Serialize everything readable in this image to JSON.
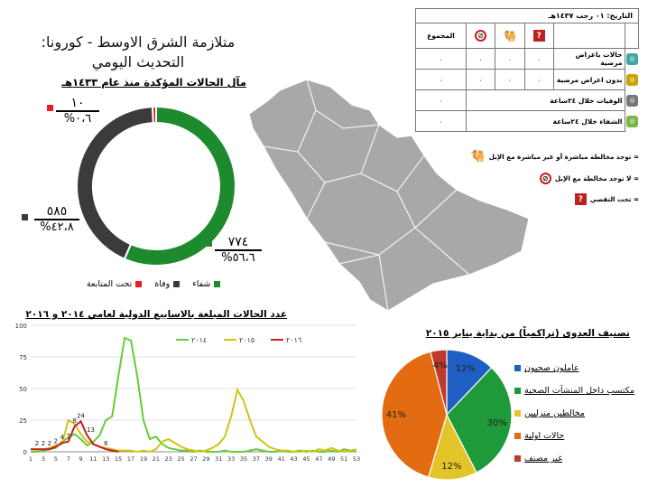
{
  "title": "متلازمة الشرق الاوسط - كورونا: التحديث اليومي",
  "confirmed": {
    "heading": "مآل الحالات المؤكدة منذ عام ١٤٣٣هـ",
    "labels": {
      "under_follow": {
        "value": "١٠",
        "pct": "٠،٦%"
      },
      "death": {
        "value": "٥٨٥",
        "pct": "٤٢،٨%"
      },
      "recovered": {
        "value": "٧٧٤",
        "pct": "٥٦،٦%"
      }
    },
    "legend": [
      "تحت المتابعة",
      "وفاة",
      "شفاء"
    ],
    "colors": {
      "under_follow": "#ed1c24",
      "death": "#3b3b3b",
      "recovered": "#1e8a2e"
    }
  },
  "table": {
    "date_label": "التاريخ:",
    "date_value": "٠١ رجب ١٤٣٧هـ",
    "total_label": "المجموع",
    "rows": [
      {
        "label": "حالات باعراض مرضية",
        "values": [
          "٠",
          "٠",
          "٠",
          "٠"
        ]
      },
      {
        "label": "بدون اعراض مرضية",
        "values": [
          "٠",
          "٠",
          "٠",
          "٠"
        ]
      },
      {
        "label": "الوفيات خلال ٢٤ساعة",
        "values": [
          "٠"
        ]
      },
      {
        "label": "الشفاء خلال ٢٤ساعة",
        "values": [
          "٠"
        ]
      }
    ]
  },
  "keys": [
    {
      "icon": "camel-icon",
      "text": "= توجد مخالطة مباشرة أو غير مباشرة مع الإبل"
    },
    {
      "icon": "no-camel-icon",
      "text": "= لا توجد مخالطة مع الإبل"
    },
    {
      "icon": "question-icon",
      "text": "= تحت التقصي"
    }
  ],
  "weekly": {
    "heading": "عدد الحالات المبلغة بالاسابيع الدولية لعامي ٢٠١٤ و ٢٠١٦",
    "series_names": [
      "٢٠١٤",
      "٢٠١٥",
      "٢٠١٦"
    ],
    "annotation_numbers": [
      "2",
      "2",
      "2",
      "2",
      "4",
      "7",
      "8",
      "24",
      "13",
      "6"
    ]
  },
  "classification": {
    "heading": "تصنيف العدوى (تراكمياً) من بداية يناير ٢٠١٥",
    "labels": [
      "عاملون صحيون",
      "مكتسب داخل المنشآت الصحية",
      "مخالطين منزليين",
      "حالات اولية",
      "غير مصنف"
    ],
    "pct_labels": [
      "12%",
      "30%",
      "12%",
      "41%",
      "4%"
    ]
  },
  "chart_data": [
    {
      "type": "pie",
      "title": "مآل الحالات المؤكدة منذ عام ١٤٣٣هـ",
      "categories": [
        "شفاء",
        "وفاة",
        "تحت المتابعة"
      ],
      "values": [
        774,
        585,
        10
      ],
      "colors": [
        "#1e8a2e",
        "#3b3b3b",
        "#ed1c24"
      ],
      "donut": true
    },
    {
      "type": "line",
      "title": "عدد الحالات المبلغة بالاسابيع الدولية لعامي ٢٠١٤ و ٢٠١٦",
      "x": [
        1,
        2,
        3,
        4,
        5,
        6,
        7,
        8,
        9,
        10,
        11,
        12,
        13,
        14,
        15,
        16,
        17,
        18,
        19,
        20,
        21,
        22,
        23,
        24,
        25,
        26,
        27,
        28,
        29,
        30,
        31,
        32,
        33,
        34,
        35,
        36,
        37,
        38,
        39,
        40,
        41,
        42,
        43,
        44,
        45,
        46,
        47,
        48,
        49,
        50,
        51,
        52,
        53
      ],
      "ylim": [
        0,
        100
      ],
      "yticks": [
        0,
        25,
        50,
        75,
        100
      ],
      "xticks": [
        1,
        3,
        5,
        7,
        9,
        11,
        13,
        15,
        17,
        19,
        21,
        23,
        25,
        27,
        29,
        31,
        33,
        35,
        37,
        39,
        41,
        43,
        45,
        47,
        49,
        51,
        53
      ],
      "series": [
        {
          "name": "٢٠١٤",
          "color": "#66cc33",
          "values": [
            0,
            0,
            1,
            2,
            3,
            8,
            11,
            14,
            10,
            5,
            8,
            13,
            25,
            28,
            60,
            90,
            88,
            60,
            25,
            10,
            12,
            6,
            3,
            2,
            1,
            1,
            0,
            1,
            0,
            0,
            0,
            1,
            0,
            0,
            0,
            1,
            2,
            1,
            0,
            0,
            1,
            0,
            0,
            1,
            0,
            1,
            0,
            0,
            1,
            0,
            2,
            1,
            0
          ]
        },
        {
          "name": "٢٠١٥",
          "color": "#d4c215",
          "values": [
            2,
            2,
            2,
            3,
            5,
            6,
            25,
            22,
            14,
            8,
            6,
            4,
            3,
            2,
            1,
            1,
            1,
            0,
            1,
            0,
            2,
            8,
            10,
            7,
            4,
            2,
            1,
            0,
            1,
            3,
            6,
            12,
            28,
            49,
            40,
            25,
            12,
            8,
            4,
            2,
            1,
            1,
            0,
            0,
            1,
            0,
            2,
            1,
            3,
            1,
            0,
            1,
            2
          ]
        },
        {
          "name": "٢٠١٦",
          "color": "#c0201f",
          "values": [
            2,
            2,
            2,
            2,
            4,
            7,
            8,
            20,
            24,
            13,
            6,
            4,
            2,
            1,
            0,
            null,
            null,
            null,
            null,
            null,
            null,
            null,
            null,
            null,
            null,
            null,
            null,
            null,
            null,
            null,
            null,
            null,
            null,
            null,
            null,
            null,
            null,
            null,
            null,
            null,
            null,
            null,
            null,
            null,
            null,
            null,
            null,
            null,
            null,
            null,
            null,
            null,
            null
          ]
        }
      ]
    },
    {
      "type": "pie",
      "title": "تصنيف العدوى (تراكمياً) من بداية يناير ٢٠١٥",
      "categories": [
        "عاملون صحيون",
        "مكتسب داخل المنشآت الصحية",
        "مخالطين منزليين",
        "حالات اولية",
        "غير مصنف"
      ],
      "values": [
        12,
        30,
        12,
        41,
        4
      ],
      "colors": [
        "#1f5fc4",
        "#1f9a3a",
        "#e3c52a",
        "#e36b12",
        "#c0392b"
      ]
    }
  ]
}
